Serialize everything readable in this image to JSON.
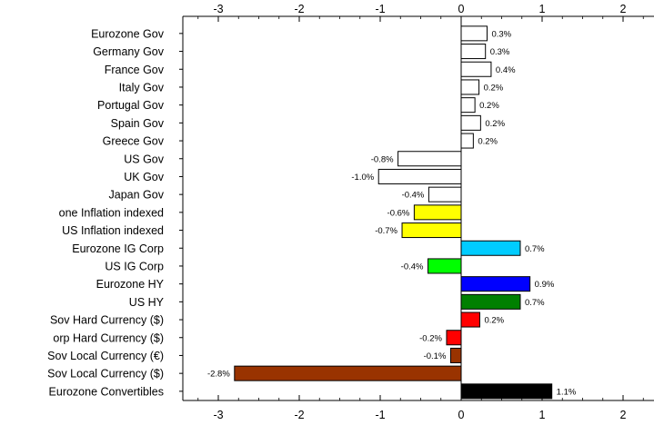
{
  "chart_data": {
    "type": "bar",
    "orientation": "horizontal",
    "title": "",
    "xlabel": "",
    "ylabel": "",
    "xlim": [
      -3.3,
      2.3
    ],
    "x_ticks": [
      -3,
      -2,
      -1,
      0,
      1,
      2
    ],
    "x_tick_labels": [
      "-3",
      "-2",
      "-1",
      "0",
      "1",
      "2"
    ],
    "grid": false,
    "legend": "none",
    "categories": [
      "Eurozone Gov",
      "Germany Gov",
      "France Gov",
      "Italy Gov",
      "Portugal Gov",
      "Spain Gov",
      "Greece Gov",
      "US Gov",
      "UK Gov",
      "Japan Gov",
      "one Inflation indexed",
      "US Inflation indexed",
      "Eurozone IG Corp",
      "US IG Corp",
      "Eurozone HY",
      "US HY",
      "Sov Hard Currency ($)",
      "orp Hard Currency ($)",
      "Sov Local Currency (€)",
      "Sov Local Currency ($)",
      "Eurozone Convertibles"
    ],
    "values": [
      0.32,
      0.3,
      0.37,
      0.22,
      0.17,
      0.24,
      0.15,
      -0.78,
      -1.02,
      -0.4,
      -0.58,
      -0.73,
      0.73,
      -0.41,
      0.85,
      0.73,
      0.23,
      -0.18,
      -0.13,
      -2.8,
      1.12
    ],
    "data_labels": [
      "0.3%",
      "0.3%",
      "0.4%",
      "0.2%",
      "0.2%",
      "0.2%",
      "0.2%",
      "-0.8%",
      "-1.0%",
      "-0.4%",
      "-0.6%",
      "-0.7%",
      "0.7%",
      "-0.4%",
      "0.9%",
      "0.7%",
      "0.2%",
      "-0.2%",
      "-0.1%",
      "-2.8%",
      "1.1%"
    ],
    "colors": [
      "#ffffff",
      "#ffffff",
      "#ffffff",
      "#ffffff",
      "#ffffff",
      "#ffffff",
      "#ffffff",
      "#ffffff",
      "#ffffff",
      "#ffffff",
      "#ffff00",
      "#ffff00",
      "#00ccff",
      "#00ff00",
      "#0000ff",
      "#008000",
      "#ff0000",
      "#ff0000",
      "#993300",
      "#993300",
      "#000000"
    ]
  }
}
